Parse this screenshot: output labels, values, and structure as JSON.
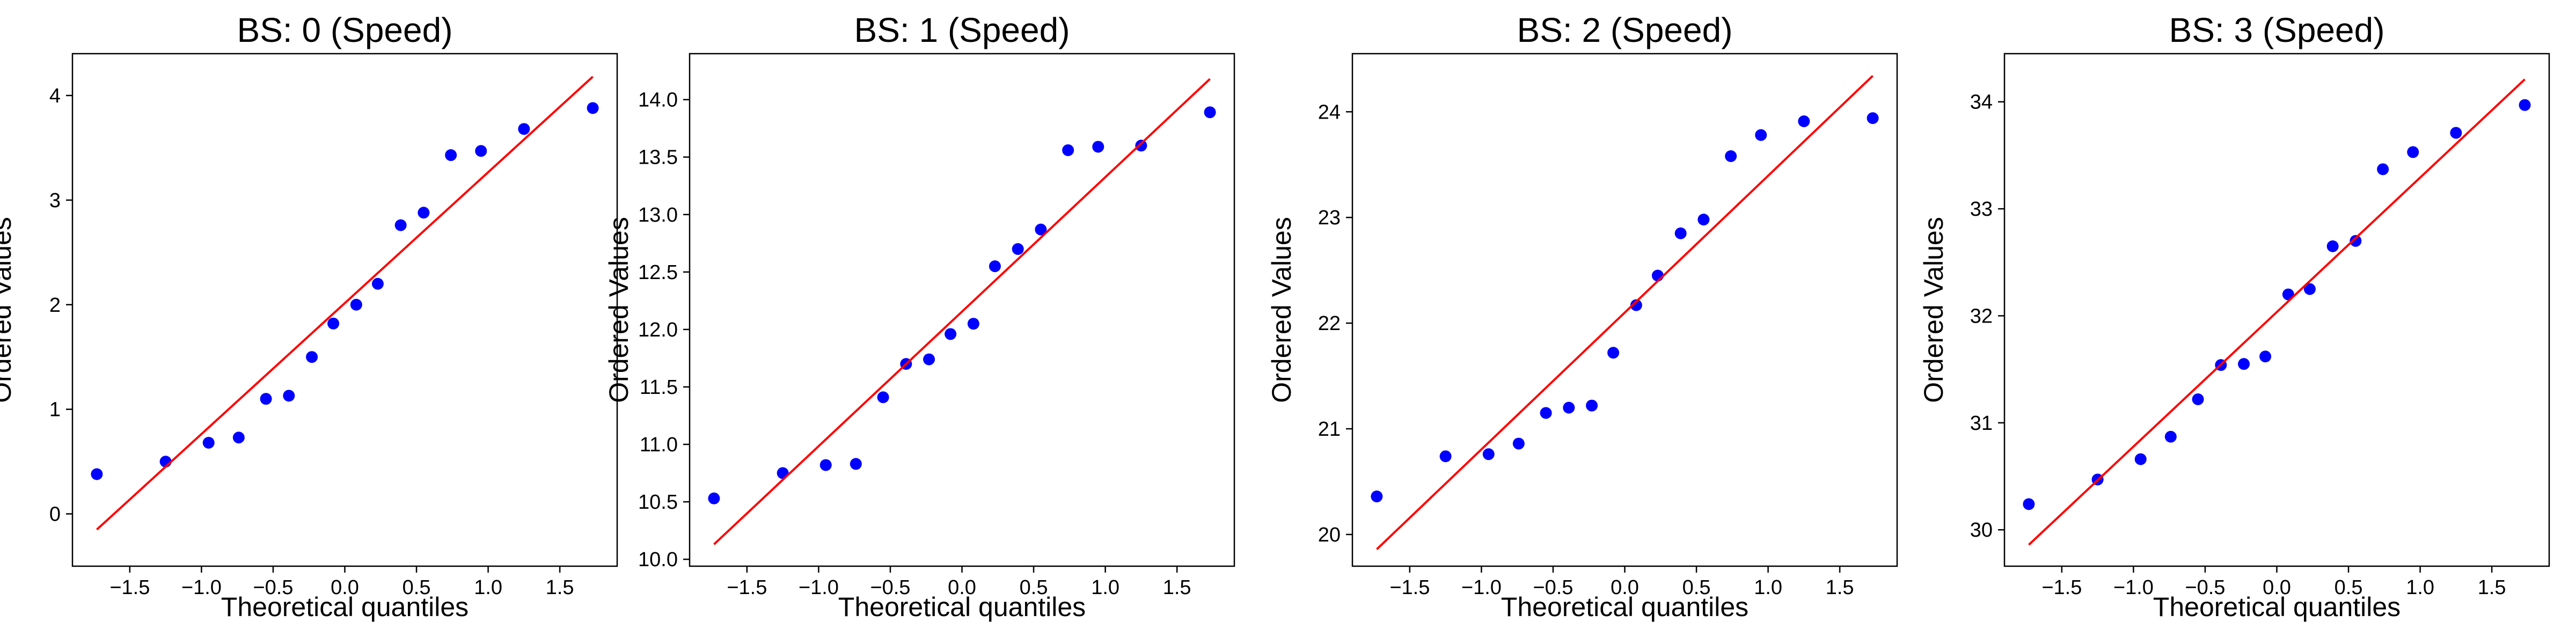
{
  "chart_data": [
    {
      "type": "scatter",
      "title": "BS: 0 (Speed)",
      "xlabel": "Theoretical quantiles",
      "ylabel": "Ordered Values",
      "xlim": [
        -1.9,
        1.9
      ],
      "ylim": [
        -0.5,
        4.4
      ],
      "xticks": [
        -1.5,
        -1.0,
        -0.5,
        0.0,
        0.5,
        1.0,
        1.5
      ],
      "xtick_labels": [
        "−1.5",
        "−1.0",
        "−0.5",
        "0.0",
        "0.5",
        "1.0",
        "1.5"
      ],
      "yticks": [
        0,
        1,
        2,
        3,
        4
      ],
      "ytick_labels": [
        "0",
        "1",
        "2",
        "3",
        "4"
      ],
      "grid": false,
      "series": [
        {
          "kind": "points",
          "color": "#0000ff",
          "x": [
            -1.73,
            -1.25,
            -0.95,
            -0.74,
            -0.55,
            -0.39,
            -0.23,
            -0.08,
            0.08,
            0.23,
            0.39,
            0.55,
            0.74,
            0.95,
            1.25,
            1.73
          ],
          "y": [
            0.38,
            0.5,
            0.68,
            0.73,
            1.1,
            1.13,
            1.5,
            1.82,
            2.0,
            2.2,
            2.76,
            2.88,
            3.43,
            3.47,
            3.68,
            3.88
          ]
        },
        {
          "kind": "fit-line",
          "color": "#ff0000",
          "x": [
            -1.73,
            1.73
          ],
          "y": [
            -0.15,
            4.18
          ]
        }
      ]
    },
    {
      "type": "scatter",
      "title": "BS: 1 (Speed)",
      "xlabel": "Theoretical quantiles",
      "ylabel": "Ordered Values",
      "xlim": [
        -1.9,
        1.9
      ],
      "ylim": [
        9.94,
        14.4
      ],
      "xticks": [
        -1.5,
        -1.0,
        -0.5,
        0.0,
        0.5,
        1.0,
        1.5
      ],
      "xtick_labels": [
        "−1.5",
        "−1.0",
        "−0.5",
        "0.0",
        "0.5",
        "1.0",
        "1.5"
      ],
      "yticks": [
        10.0,
        10.5,
        11.0,
        11.5,
        12.0,
        12.5,
        13.0,
        13.5,
        14.0
      ],
      "ytick_labels": [
        "10.0",
        "10.5",
        "11.0",
        "11.5",
        "12.0",
        "12.5",
        "13.0",
        "13.5",
        "14.0"
      ],
      "grid": false,
      "series": [
        {
          "kind": "points",
          "color": "#0000ff",
          "x": [
            -1.73,
            -1.25,
            -0.95,
            -0.74,
            -0.55,
            -0.39,
            -0.23,
            -0.08,
            0.08,
            0.23,
            0.39,
            0.55,
            0.74,
            0.95,
            1.25,
            1.73
          ],
          "y": [
            10.53,
            10.75,
            10.82,
            10.83,
            11.41,
            11.7,
            11.74,
            11.96,
            12.05,
            12.55,
            12.7,
            12.87,
            13.56,
            13.59,
            13.6,
            13.89
          ]
        },
        {
          "kind": "fit-line",
          "color": "#ff0000",
          "x": [
            -1.73,
            1.73
          ],
          "y": [
            10.13,
            14.18
          ]
        }
      ]
    },
    {
      "type": "scatter",
      "title": "BS: 2 (Speed)",
      "xlabel": "Theoretical quantiles",
      "ylabel": "Ordered Values",
      "xlim": [
        -1.9,
        1.9
      ],
      "ylim": [
        19.7,
        24.55
      ],
      "xticks": [
        -1.5,
        -1.0,
        -0.5,
        0.0,
        0.5,
        1.0,
        1.5
      ],
      "xtick_labels": [
        "−1.5",
        "−1.0",
        "−0.5",
        "0.0",
        "0.5",
        "1.0",
        "1.5"
      ],
      "yticks": [
        20,
        21,
        22,
        23,
        24
      ],
      "ytick_labels": [
        "20",
        "21",
        "22",
        "23",
        "24"
      ],
      "grid": false,
      "series": [
        {
          "kind": "points",
          "color": "#0000ff",
          "x": [
            -1.73,
            -1.25,
            -0.95,
            -0.74,
            -0.55,
            -0.39,
            -0.23,
            -0.08,
            0.08,
            0.23,
            0.39,
            0.55,
            0.74,
            0.95,
            1.25,
            1.73
          ],
          "y": [
            20.36,
            20.74,
            20.76,
            20.86,
            21.15,
            21.2,
            21.22,
            21.72,
            22.17,
            22.45,
            22.85,
            22.98,
            23.58,
            23.78,
            23.91,
            23.94
          ]
        },
        {
          "kind": "fit-line",
          "color": "#ff0000",
          "x": [
            -1.73,
            1.73
          ],
          "y": [
            19.86,
            24.34
          ]
        }
      ]
    },
    {
      "type": "scatter",
      "title": "BS: 3 (Speed)",
      "xlabel": "Theoretical quantiles",
      "ylabel": "Ordered Values",
      "xlim": [
        -1.9,
        1.9
      ],
      "ylim": [
        29.66,
        34.45
      ],
      "xticks": [
        -1.5,
        -1.0,
        -0.5,
        0.0,
        0.5,
        1.0,
        1.5
      ],
      "xtick_labels": [
        "−1.5",
        "−1.0",
        "−0.5",
        "0.0",
        "0.5",
        "1.0",
        "1.5"
      ],
      "yticks": [
        30,
        31,
        32,
        33,
        34
      ],
      "ytick_labels": [
        "30",
        "31",
        "32",
        "33",
        "34"
      ],
      "grid": false,
      "series": [
        {
          "kind": "points",
          "color": "#0000ff",
          "x": [
            -1.73,
            -1.25,
            -0.95,
            -0.74,
            -0.55,
            -0.39,
            -0.23,
            -0.08,
            0.08,
            0.23,
            0.39,
            0.55,
            0.74,
            0.95,
            1.25,
            1.73
          ],
          "y": [
            30.24,
            30.47,
            30.66,
            30.87,
            31.22,
            31.54,
            31.55,
            31.62,
            32.2,
            32.25,
            32.65,
            32.7,
            33.37,
            33.53,
            33.71,
            33.97
          ]
        },
        {
          "kind": "fit-line",
          "color": "#ff0000",
          "x": [
            -1.73,
            1.73
          ],
          "y": [
            29.86,
            34.21
          ]
        }
      ]
    }
  ]
}
